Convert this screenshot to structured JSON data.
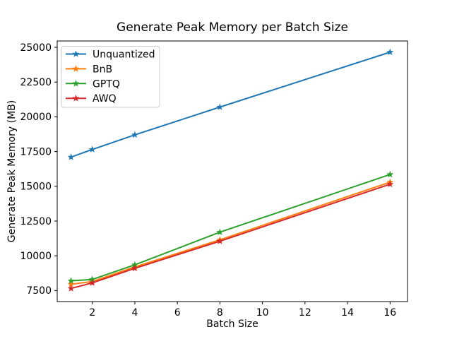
{
  "chart_data": {
    "type": "line",
    "title": "Generate Peak Memory per Batch Size",
    "xlabel": "Batch Size",
    "ylabel": "Generate Peak Memory (MB)",
    "x": [
      1,
      2,
      4,
      8,
      16
    ],
    "series": [
      {
        "name": "Unquantized",
        "color": "#1f77b4",
        "marker": "star",
        "values": [
          17100,
          17650,
          18700,
          20700,
          24650
        ]
      },
      {
        "name": "BnB",
        "color": "#ff7f0e",
        "marker": "star",
        "values": [
          7950,
          8150,
          9200,
          11150,
          15300
        ]
      },
      {
        "name": "GPTQ",
        "color": "#2ca02c",
        "marker": "star",
        "values": [
          8200,
          8300,
          9350,
          11700,
          15850
        ]
      },
      {
        "name": "AWQ",
        "color": "#d62728",
        "marker": "star",
        "values": [
          7650,
          8050,
          9100,
          11050,
          15150
        ]
      }
    ],
    "xticks": [
      2,
      4,
      6,
      8,
      10,
      12,
      14,
      16
    ],
    "yticks": [
      7500,
      10000,
      12500,
      15000,
      17500,
      20000,
      22500,
      25000
    ],
    "xlim": [
      0.35,
      16.82
    ],
    "ylim": [
      6707,
      25457
    ],
    "grid": false,
    "legend": {
      "position": "upper-left",
      "entries": [
        "Unquantized",
        "BnB",
        "GPTQ",
        "AWQ"
      ]
    },
    "background": "#ffffff",
    "spine_color": "#000000"
  }
}
